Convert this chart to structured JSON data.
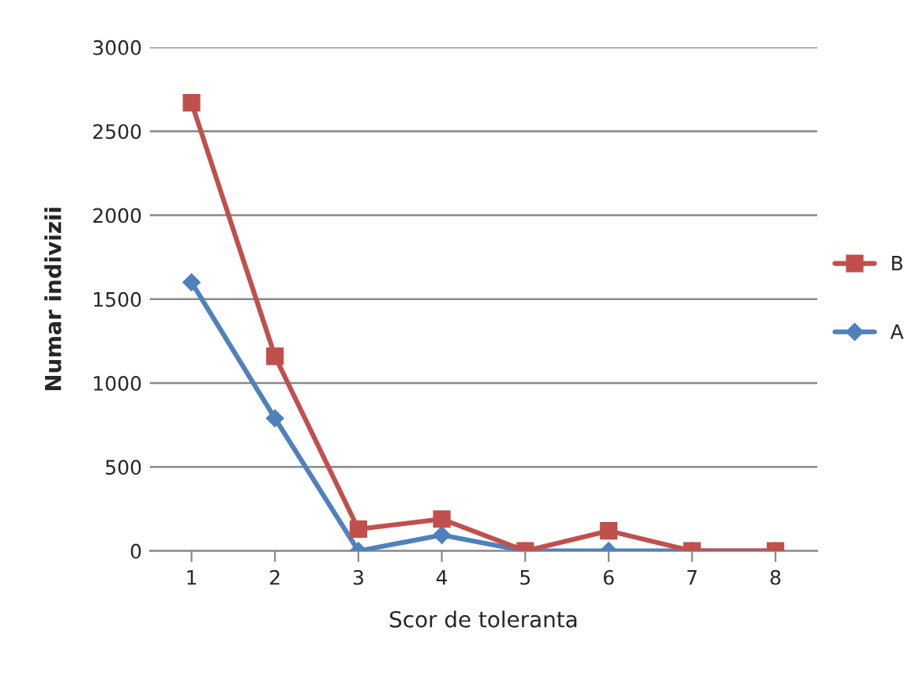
{
  "chart_data": {
    "type": "line",
    "xlabel": "Scor de toleranta",
    "ylabel": "Numar indivizii",
    "categories": [
      "1",
      "2",
      "3",
      "4",
      "5",
      "6",
      "7",
      "8"
    ],
    "series": [
      {
        "name": "B",
        "color": "#c0504d",
        "marker": "square",
        "values": [
          2670,
          1160,
          130,
          190,
          0,
          120,
          0,
          0
        ]
      },
      {
        "name": "A",
        "color": "#4f81bd",
        "marker": "diamond",
        "values": [
          1600,
          790,
          0,
          95,
          0,
          0,
          0,
          0
        ]
      }
    ],
    "ylim": [
      0,
      3000
    ],
    "yticks": [
      0,
      500,
      1000,
      1500,
      2000,
      2500,
      3000
    ],
    "grid": "y",
    "legend": "right"
  }
}
